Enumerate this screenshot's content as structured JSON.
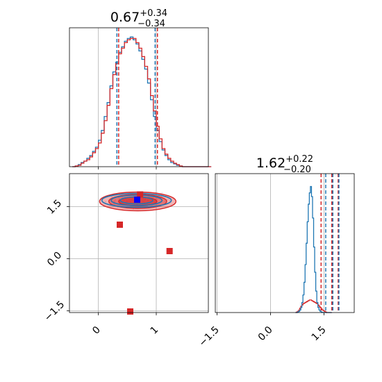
{
  "chart_data": {
    "type": "corner",
    "parameters": [
      "",
      ""
    ],
    "titles": [
      {
        "median": "0.67",
        "plus": "+0.34",
        "minus": "−0.34"
      },
      {
        "median": "1.62",
        "plus": "+0.22",
        "minus": "−0.20"
      }
    ],
    "x_ticks_param1": [
      {
        "value": 0,
        "label": "0"
      },
      {
        "value": 1,
        "label": "1"
      }
    ],
    "xlim_param1": [
      -0.5,
      1.9
    ],
    "x_ticks_param2": [
      {
        "value": -1.5,
        "label": "−1.5"
      },
      {
        "value": 0.0,
        "label": "0.0"
      },
      {
        "value": 1.5,
        "label": "1.5"
      }
    ],
    "xlim_param2": [
      -1.55,
      2.35
    ],
    "y_ticks_param2": [
      {
        "value": -1.5,
        "label": "−1.5"
      },
      {
        "value": 0.0,
        "label": "0.0"
      },
      {
        "value": 1.5,
        "label": "1.5"
      }
    ],
    "ylim_param2": [
      -1.55,
      2.45
    ],
    "grid": true,
    "colors": {
      "blue": "#1f77b4",
      "red": "#d62728"
    },
    "hist1_bins": {
      "start": -0.45,
      "width": 0.05
    },
    "hist1": {
      "blue": [
        0,
        0.5,
        1.5,
        3,
        4,
        6,
        8,
        11,
        14,
        19,
        26,
        36,
        46,
        58,
        68,
        75,
        82,
        86,
        90,
        92,
        93,
        91,
        88,
        83,
        77,
        70,
        60,
        48,
        36,
        26,
        18,
        12,
        8,
        5,
        3,
        2,
        1,
        0.5,
        0,
        0,
        0,
        0,
        0,
        0,
        0,
        0,
        0,
        0
      ],
      "red": [
        0,
        0.5,
        1,
        2.5,
        4,
        5,
        7,
        10,
        13,
        17,
        24,
        33,
        44,
        56,
        66,
        74,
        81,
        85,
        89,
        91,
        92,
        92,
        89,
        85,
        79,
        72,
        63,
        51,
        40,
        29,
        20,
        13,
        9,
        6,
        4,
        2.5,
        1.5,
        0.5,
        0,
        0,
        0,
        0,
        0,
        0,
        0,
        0,
        0,
        0
      ]
    },
    "hist1_quantiles": {
      "blue": [
        0.32,
        0.67,
        0.98
      ],
      "red": [
        0.35,
        0.68,
        1.02
      ]
    },
    "hist2_bins": {
      "start": 0.7,
      "width": 0.03
    },
    "hist2": {
      "blue": [
        0,
        0,
        0.5,
        1,
        2,
        4,
        8,
        14,
        24,
        38,
        55,
        72,
        86,
        95,
        100,
        92,
        75,
        52,
        32,
        17,
        8,
        4,
        2,
        1,
        0.5,
        0,
        0,
        0,
        0,
        0,
        0,
        0,
        0,
        0
      ],
      "red": [
        0,
        0.5,
        1,
        2,
        3.5,
        5,
        6,
        7,
        7.5,
        8,
        8.5,
        9,
        9.5,
        10,
        10,
        9.5,
        9,
        8.5,
        8,
        7.5,
        7,
        6,
        5,
        4,
        3,
        2,
        1.5,
        1,
        0.5,
        0,
        0,
        0,
        0,
        0
      ]
    },
    "hist2_quantiles": {
      "blue": [
        1.55,
        1.75,
        1.92
      ],
      "red": [
        1.42,
        1.72,
        1.9
      ]
    },
    "markers": {
      "blue": [
        {
          "x": 0.67,
          "y": 1.7
        }
      ],
      "red": [
        {
          "x": 0.72,
          "y": 1.85
        },
        {
          "x": 0.37,
          "y": 0.98
        },
        {
          "x": 1.23,
          "y": 0.22
        },
        {
          "x": 0.55,
          "y": -1.52
        }
      ]
    }
  }
}
